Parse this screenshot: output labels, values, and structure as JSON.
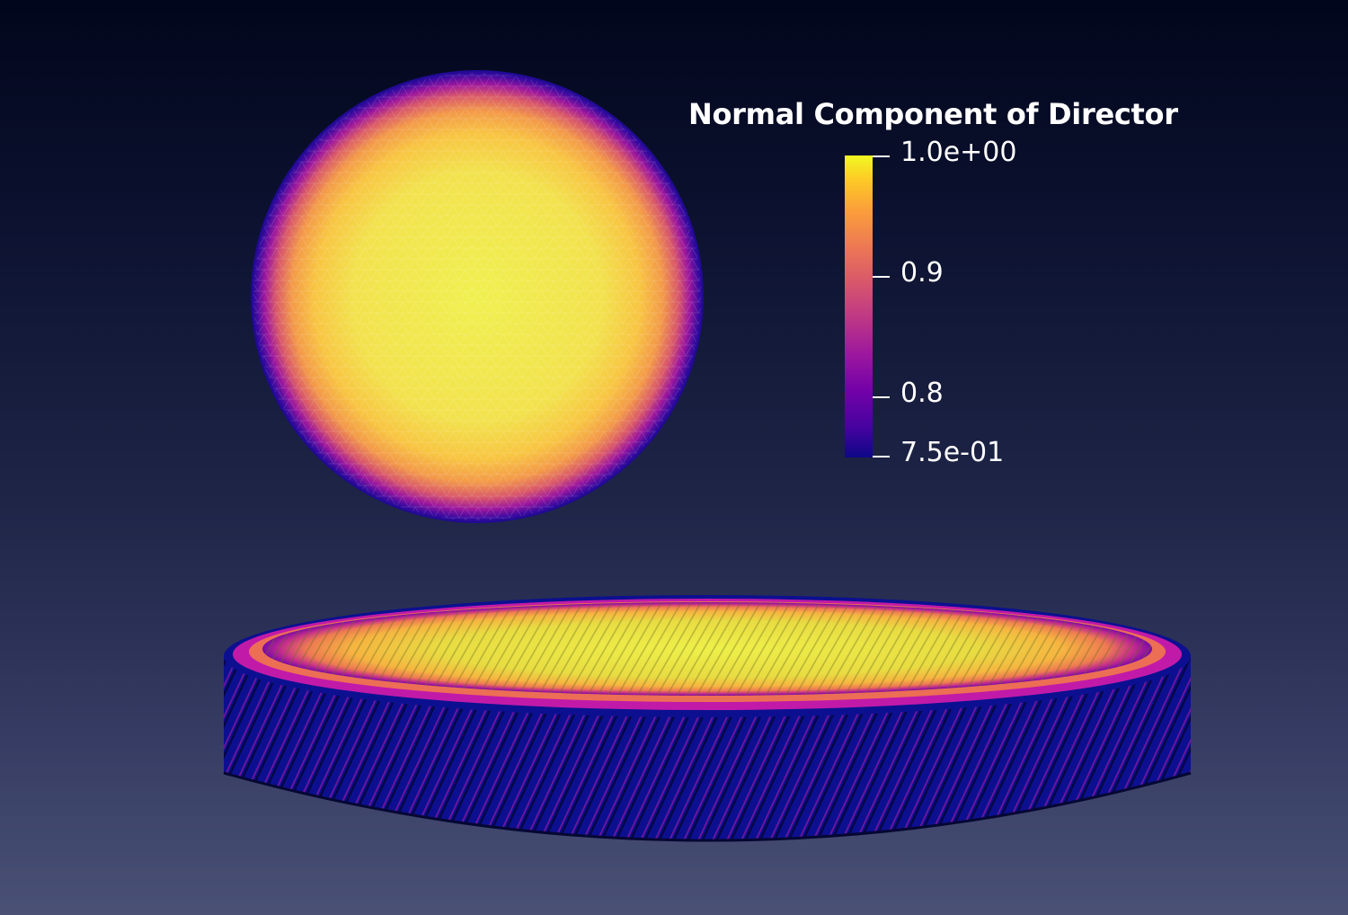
{
  "legend": {
    "title": "Normal Component of Director",
    "colormap": "plasma",
    "range": [
      0.75,
      1.0
    ],
    "ticks": [
      {
        "value": 1.0,
        "label": "1.0e+00"
      },
      {
        "value": 0.9,
        "label": "0.9"
      },
      {
        "value": 0.8,
        "label": "0.8"
      },
      {
        "value": 0.75,
        "label": "7.5e-01"
      }
    ]
  },
  "colors": {
    "background_top": "#02061c",
    "background_bottom": "#4a5175",
    "plasma_low": "#0d0887",
    "plasma_mid": "#cc4778",
    "plasma_high": "#f0f921",
    "edge_rods": "#0a0f8a"
  }
}
